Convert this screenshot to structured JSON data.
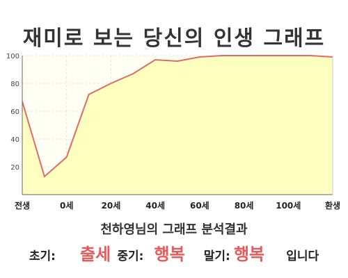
{
  "title": "재미로 보는 당신의 인생 그래프",
  "chart_data": {
    "type": "area",
    "y_ticks": [
      20,
      40,
      60,
      80,
      100
    ],
    "ylim": [
      0,
      100
    ],
    "x_tick_labels": [
      "전생",
      "0세",
      "20세",
      "40세",
      "60세",
      "80세",
      "100세",
      "환생"
    ],
    "x": [
      0,
      1,
      2,
      3,
      4,
      5,
      6,
      7,
      8,
      9,
      10,
      11,
      12,
      13,
      14
    ],
    "values": [
      67,
      13,
      27,
      72,
      80,
      87,
      97,
      96,
      99,
      100,
      100,
      100,
      100,
      100,
      99
    ],
    "grid": true,
    "colors": {
      "fill": "#ffffc0",
      "line": "#e06a6a",
      "background": "#fffff3",
      "grid": "#e6e6c8",
      "axis": "#666666"
    }
  },
  "result": {
    "heading": "천하영님의 그래프 분석결과",
    "early_label": "초기:",
    "early_value": "출세",
    "middle_label": "중기:",
    "middle_value": "행복",
    "late_label": "말기:",
    "late_value": "행복",
    "ending": "입니다"
  }
}
